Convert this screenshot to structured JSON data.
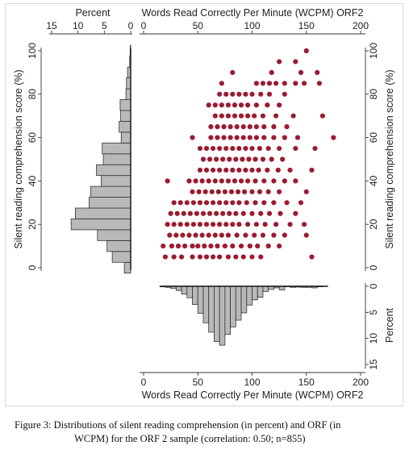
{
  "caption": {
    "line1": "Figure 3: Distributions of silent reading comprehension (in percent) and ORF (in",
    "line2": "WCPM) for the ORF 2 sample (correlation: 0.50; n=855)"
  },
  "colors": {
    "marker": "#9b1b30",
    "bar_fill": "#b9b9b9",
    "bar_stroke": "#333333"
  },
  "chart_data": [
    {
      "type": "scatter",
      "xlabel": "Words Read Correctly Per Minute (WCPM) ORF2",
      "ylabel": "Silent reading comprehension score (%)",
      "xlim": [
        0,
        200
      ],
      "ylim": [
        0,
        100
      ],
      "xticks": [
        "0",
        "50",
        "100",
        "150",
        "200"
      ],
      "yticks": [
        "0",
        "20",
        "40",
        "60",
        "80",
        "100"
      ],
      "grid": false,
      "y_levels": [
        5,
        10,
        15,
        20,
        25,
        30,
        35,
        40,
        45,
        50,
        55,
        60,
        65,
        70,
        75,
        80,
        85,
        90,
        95,
        100
      ],
      "points": [
        [
          20,
          5
        ],
        [
          28,
          5
        ],
        [
          35,
          5
        ],
        [
          45,
          5
        ],
        [
          52,
          5
        ],
        [
          58,
          5
        ],
        [
          64,
          5
        ],
        [
          70,
          5
        ],
        [
          78,
          5
        ],
        [
          85,
          5
        ],
        [
          92,
          5
        ],
        [
          100,
          5
        ],
        [
          108,
          5
        ],
        [
          155,
          5
        ],
        [
          18,
          10
        ],
        [
          26,
          10
        ],
        [
          32,
          10
        ],
        [
          38,
          10
        ],
        [
          45,
          10
        ],
        [
          50,
          10
        ],
        [
          56,
          10
        ],
        [
          62,
          10
        ],
        [
          68,
          10
        ],
        [
          75,
          10
        ],
        [
          82,
          10
        ],
        [
          90,
          10
        ],
        [
          98,
          10
        ],
        [
          105,
          10
        ],
        [
          115,
          10
        ],
        [
          125,
          10
        ],
        [
          24,
          15
        ],
        [
          30,
          15
        ],
        [
          36,
          15
        ],
        [
          42,
          15
        ],
        [
          48,
          15
        ],
        [
          54,
          15
        ],
        [
          60,
          15
        ],
        [
          66,
          15
        ],
        [
          72,
          15
        ],
        [
          78,
          15
        ],
        [
          86,
          15
        ],
        [
          94,
          15
        ],
        [
          102,
          15
        ],
        [
          110,
          15
        ],
        [
          120,
          15
        ],
        [
          130,
          15
        ],
        [
          150,
          15
        ],
        [
          22,
          20
        ],
        [
          28,
          20
        ],
        [
          34,
          20
        ],
        [
          40,
          20
        ],
        [
          46,
          20
        ],
        [
          52,
          20
        ],
        [
          58,
          20
        ],
        [
          64,
          20
        ],
        [
          70,
          20
        ],
        [
          76,
          20
        ],
        [
          82,
          20
        ],
        [
          88,
          20
        ],
        [
          96,
          20
        ],
        [
          104,
          20
        ],
        [
          112,
          20
        ],
        [
          122,
          20
        ],
        [
          135,
          20
        ],
        [
          148,
          20
        ],
        [
          25,
          25
        ],
        [
          31,
          25
        ],
        [
          37,
          25
        ],
        [
          43,
          25
        ],
        [
          49,
          25
        ],
        [
          55,
          25
        ],
        [
          61,
          25
        ],
        [
          67,
          25
        ],
        [
          73,
          25
        ],
        [
          79,
          25
        ],
        [
          85,
          25
        ],
        [
          92,
          25
        ],
        [
          100,
          25
        ],
        [
          108,
          25
        ],
        [
          116,
          25
        ],
        [
          126,
          25
        ],
        [
          140,
          25
        ],
        [
          28,
          30
        ],
        [
          34,
          30
        ],
        [
          40,
          30
        ],
        [
          46,
          30
        ],
        [
          52,
          30
        ],
        [
          58,
          30
        ],
        [
          64,
          30
        ],
        [
          70,
          30
        ],
        [
          76,
          30
        ],
        [
          82,
          30
        ],
        [
          88,
          30
        ],
        [
          95,
          30
        ],
        [
          103,
          30
        ],
        [
          111,
          30
        ],
        [
          120,
          30
        ],
        [
          132,
          30
        ],
        [
          145,
          30
        ],
        [
          45,
          35
        ],
        [
          51,
          35
        ],
        [
          57,
          35
        ],
        [
          63,
          35
        ],
        [
          69,
          35
        ],
        [
          75,
          35
        ],
        [
          81,
          35
        ],
        [
          87,
          35
        ],
        [
          93,
          35
        ],
        [
          100,
          35
        ],
        [
          107,
          35
        ],
        [
          115,
          35
        ],
        [
          125,
          35
        ],
        [
          150,
          35
        ],
        [
          22,
          40
        ],
        [
          42,
          40
        ],
        [
          48,
          40
        ],
        [
          54,
          40
        ],
        [
          60,
          40
        ],
        [
          66,
          40
        ],
        [
          72,
          40
        ],
        [
          78,
          40
        ],
        [
          84,
          40
        ],
        [
          90,
          40
        ],
        [
          96,
          40
        ],
        [
          103,
          40
        ],
        [
          111,
          40
        ],
        [
          120,
          40
        ],
        [
          130,
          40
        ],
        [
          140,
          40
        ],
        [
          52,
          45
        ],
        [
          58,
          45
        ],
        [
          64,
          45
        ],
        [
          70,
          45
        ],
        [
          76,
          45
        ],
        [
          82,
          45
        ],
        [
          88,
          45
        ],
        [
          94,
          45
        ],
        [
          100,
          45
        ],
        [
          106,
          45
        ],
        [
          114,
          45
        ],
        [
          124,
          45
        ],
        [
          135,
          45
        ],
        [
          155,
          45
        ],
        [
          55,
          50
        ],
        [
          61,
          50
        ],
        [
          67,
          50
        ],
        [
          73,
          50
        ],
        [
          79,
          50
        ],
        [
          85,
          50
        ],
        [
          91,
          50
        ],
        [
          97,
          50
        ],
        [
          103,
          50
        ],
        [
          110,
          50
        ],
        [
          118,
          50
        ],
        [
          128,
          50
        ],
        [
          52,
          55
        ],
        [
          58,
          55
        ],
        [
          64,
          55
        ],
        [
          70,
          55
        ],
        [
          76,
          55
        ],
        [
          82,
          55
        ],
        [
          88,
          55
        ],
        [
          94,
          55
        ],
        [
          100,
          55
        ],
        [
          107,
          55
        ],
        [
          115,
          55
        ],
        [
          125,
          55
        ],
        [
          140,
          55
        ],
        [
          158,
          55
        ],
        [
          45,
          60
        ],
        [
          62,
          60
        ],
        [
          68,
          60
        ],
        [
          74,
          60
        ],
        [
          80,
          60
        ],
        [
          86,
          60
        ],
        [
          92,
          60
        ],
        [
          98,
          60
        ],
        [
          104,
          60
        ],
        [
          111,
          60
        ],
        [
          120,
          60
        ],
        [
          130,
          60
        ],
        [
          142,
          60
        ],
        [
          175,
          60
        ],
        [
          62,
          65
        ],
        [
          68,
          65
        ],
        [
          74,
          65
        ],
        [
          80,
          65
        ],
        [
          86,
          65
        ],
        [
          92,
          65
        ],
        [
          98,
          65
        ],
        [
          104,
          65
        ],
        [
          111,
          65
        ],
        [
          120,
          65
        ],
        [
          132,
          65
        ],
        [
          66,
          70
        ],
        [
          72,
          70
        ],
        [
          78,
          70
        ],
        [
          84,
          70
        ],
        [
          90,
          70
        ],
        [
          96,
          70
        ],
        [
          102,
          70
        ],
        [
          110,
          70
        ],
        [
          122,
          70
        ],
        [
          138,
          70
        ],
        [
          165,
          70
        ],
        [
          60,
          75
        ],
        [
          66,
          75
        ],
        [
          72,
          75
        ],
        [
          78,
          75
        ],
        [
          84,
          75
        ],
        [
          90,
          75
        ],
        [
          96,
          75
        ],
        [
          104,
          75
        ],
        [
          114,
          75
        ],
        [
          125,
          75
        ],
        [
          70,
          80
        ],
        [
          76,
          80
        ],
        [
          82,
          80
        ],
        [
          88,
          80
        ],
        [
          94,
          80
        ],
        [
          100,
          80
        ],
        [
          108,
          80
        ],
        [
          116,
          80
        ],
        [
          130,
          80
        ],
        [
          72,
          85
        ],
        [
          104,
          85
        ],
        [
          110,
          85
        ],
        [
          116,
          85
        ],
        [
          122,
          85
        ],
        [
          130,
          85
        ],
        [
          140,
          85
        ],
        [
          148,
          85
        ],
        [
          162,
          85
        ],
        [
          82,
          90
        ],
        [
          118,
          90
        ],
        [
          145,
          90
        ],
        [
          160,
          90
        ],
        [
          125,
          95
        ],
        [
          140,
          95
        ],
        [
          150,
          100
        ]
      ]
    },
    {
      "type": "bar",
      "orientation": "horizontal",
      "xlabel": "Percent",
      "xlim": [
        15,
        0
      ],
      "xticks": [
        "15",
        "10",
        "5",
        "0"
      ],
      "categories": [
        0,
        5,
        10,
        15,
        20,
        25,
        30,
        35,
        40,
        45,
        50,
        55,
        60,
        65,
        70,
        75,
        80,
        85,
        90,
        95,
        100
      ],
      "values": [
        1.2,
        3.5,
        4.5,
        6.3,
        11.3,
        10.5,
        7.9,
        7.6,
        5.6,
        6.5,
        5.2,
        5.4,
        1.8,
        2.2,
        1.9,
        2.0,
        0.9,
        0.8,
        0.6,
        0.2,
        0.1
      ]
    },
    {
      "type": "bar",
      "orientation": "vertical",
      "ylabel": "Percent",
      "ylim": [
        0,
        15
      ],
      "yticks": [
        "0",
        "5",
        "10",
        "15"
      ],
      "categories": [
        17.5,
        22.5,
        27.5,
        32.5,
        37.5,
        42.5,
        47.5,
        52.5,
        57.5,
        62.5,
        67.5,
        72.5,
        77.5,
        82.5,
        87.5,
        92.5,
        97.5,
        102.5,
        107.5,
        112.5,
        117.5,
        122.5,
        127.5,
        132.5,
        137.5,
        142.5,
        147.5,
        152.5,
        157.5,
        162.5
      ],
      "values": [
        0.1,
        0.2,
        0.4,
        0.8,
        1.5,
        2.2,
        3.5,
        5.2,
        7.0,
        8.8,
        10.6,
        11.3,
        9.2,
        7.8,
        6.5,
        5.1,
        3.6,
        2.6,
        2.1,
        1.0,
        0.6,
        0.3,
        0.7,
        0.1,
        0.2,
        0.15,
        0.2,
        0.2,
        0.3,
        0.1
      ]
    }
  ]
}
